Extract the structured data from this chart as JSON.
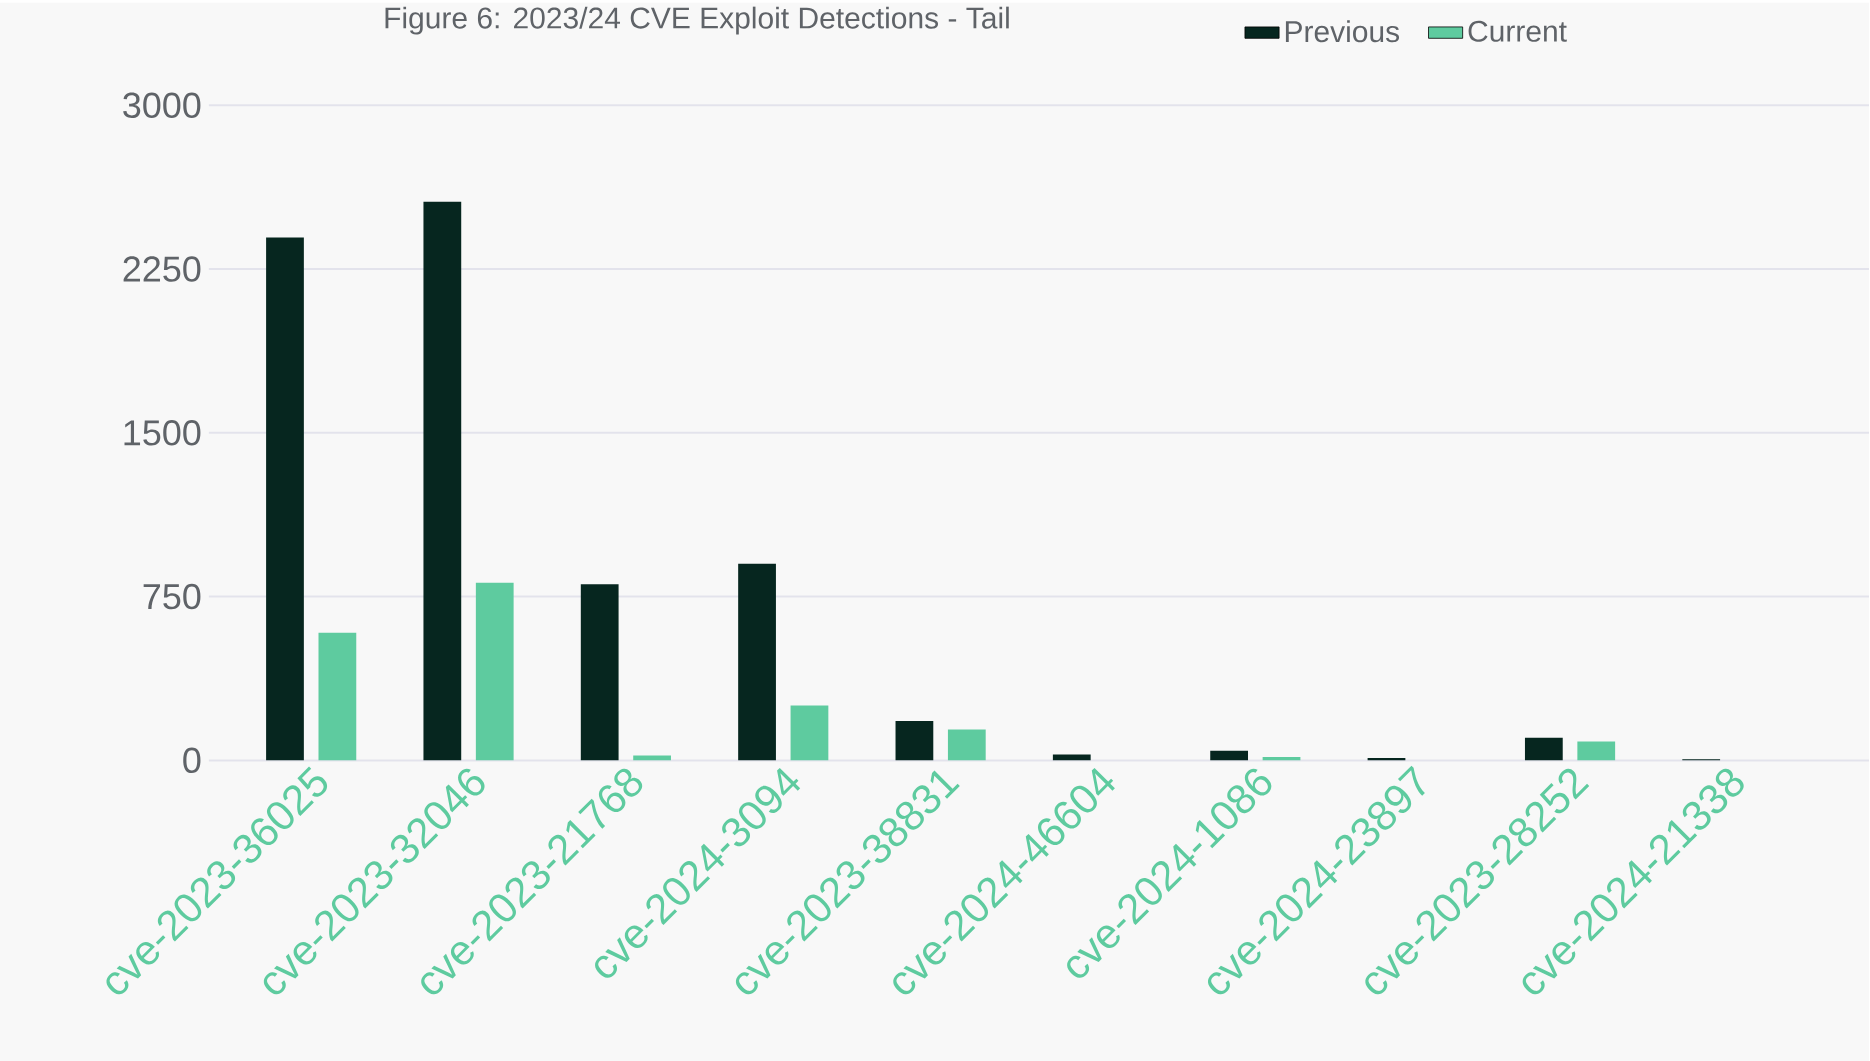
{
  "chart_data": {
    "type": "bar",
    "title": "Figure 6: 2023/24 CVE Exploit Detections - Tail",
    "categories": [
      "cve-2023-36025",
      "cve-2023-32046",
      "cve-2023-21768",
      "cve-2024-3094",
      "cve-2023-38831",
      "cve-2024-46604",
      "cve-2024-1086",
      "cve-2024-23897",
      "cve-2023-28252",
      "cve-2024-21338"
    ],
    "series": [
      {
        "name": "Previous",
        "color": "#06261f",
        "values": [
          2395,
          2558,
          807,
          900,
          180,
          27,
          44,
          11,
          104,
          5
        ]
      },
      {
        "name": "Current",
        "color": "#5ecb9f",
        "values": [
          584,
          813,
          22,
          251,
          142,
          0,
          16,
          0,
          87,
          0
        ]
      }
    ],
    "ylim": [
      0,
      3000
    ],
    "yticks": [
      0,
      750,
      1500,
      2250,
      3000
    ],
    "grid": "y",
    "legend": "top right"
  }
}
